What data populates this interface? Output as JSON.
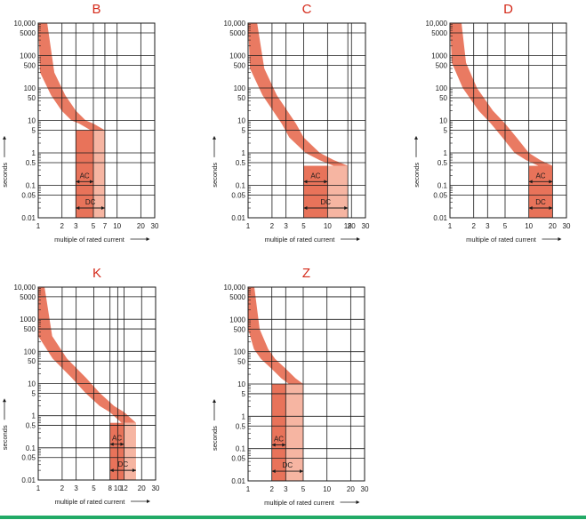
{
  "colors": {
    "title": "#d42a1a",
    "band_dark": "#e8735a",
    "band_light": "#f6b5a2",
    "grid": "#1a1a1a",
    "text": "#1a1a1a",
    "bottom_rule": "#22aa66"
  },
  "common": {
    "ylabel": "seconds",
    "xlabel": "multiple of rated current",
    "y_ticks": [
      "10,000",
      "5000",
      "1000",
      "500",
      "100",
      "50",
      "10",
      "5",
      "1",
      "0.5",
      "0.1",
      "0.05",
      "0.01"
    ]
  },
  "chart_data": [
    {
      "type": "area",
      "title": "B",
      "x_scale": "log",
      "y_scale": "log",
      "xlim": [
        1,
        30
      ],
      "ylim": [
        0.01,
        10000
      ],
      "x_ticks": [
        "1",
        "2",
        "3",
        "5",
        "7",
        "10",
        "20",
        "30"
      ],
      "x_tick_values": [
        1,
        2,
        3,
        5,
        7,
        10,
        20,
        30
      ],
      "ac": {
        "label": "AC",
        "from": 3,
        "to": 5
      },
      "dc": {
        "label": "DC",
        "from": 3,
        "to": 7
      },
      "band_curve": [
        [
          1.3,
          10000
        ],
        [
          1.6,
          300
        ],
        [
          2.2,
          60
        ],
        [
          3,
          20
        ],
        [
          4,
          10
        ],
        [
          5,
          8
        ],
        [
          7,
          5
        ]
      ]
    },
    {
      "type": "area",
      "title": "C",
      "x_scale": "log",
      "y_scale": "log",
      "xlim": [
        1,
        30
      ],
      "ylim": [
        0.01,
        10000
      ],
      "x_ticks": [
        "1",
        "2",
        "3",
        "5",
        "10",
        "18",
        "20",
        "30"
      ],
      "x_tick_values": [
        1,
        2,
        3,
        5,
        10,
        18,
        20,
        30
      ],
      "ac": {
        "label": "AC",
        "from": 5,
        "to": 10
      },
      "dc": {
        "label": "DC",
        "from": 5,
        "to": 18
      },
      "band_curve": [
        [
          1.3,
          10000
        ],
        [
          1.6,
          400
        ],
        [
          2.3,
          60
        ],
        [
          4,
          8
        ],
        [
          5,
          3
        ],
        [
          8,
          1
        ],
        [
          12,
          0.6
        ],
        [
          18,
          0.4
        ]
      ]
    },
    {
      "type": "area",
      "title": "D",
      "x_scale": "log",
      "y_scale": "log",
      "xlim": [
        1,
        30
      ],
      "ylim": [
        0.01,
        10000
      ],
      "x_ticks": [
        "1",
        "2",
        "3",
        "5",
        "10",
        "20",
        "30"
      ],
      "x_tick_values": [
        1,
        2,
        3,
        5,
        10,
        20,
        30
      ],
      "ac": {
        "label": "AC",
        "from": 10,
        "to": 20
      },
      "dc": {
        "label": "DC",
        "from": 10,
        "to": 20
      },
      "band_curve": [
        [
          1.4,
          10000
        ],
        [
          1.6,
          600
        ],
        [
          2.2,
          100
        ],
        [
          3.5,
          20
        ],
        [
          5,
          8
        ],
        [
          7,
          3
        ],
        [
          10,
          1
        ],
        [
          14,
          0.6
        ],
        [
          20,
          0.4
        ]
      ]
    },
    {
      "type": "area",
      "title": "K",
      "x_scale": "log",
      "y_scale": "log",
      "xlim": [
        1,
        30
      ],
      "ylim": [
        0.01,
        10000
      ],
      "x_ticks": [
        "1",
        "2",
        "3",
        "5",
        "8",
        "10",
        "12",
        "20",
        "30"
      ],
      "x_tick_values": [
        1,
        2,
        3,
        5,
        8,
        10,
        12,
        20,
        30
      ],
      "ac": {
        "label": "AC",
        "from": 8,
        "to": 12
      },
      "dc": {
        "label": "DC",
        "from": 8,
        "to": 17
      },
      "band_curve": [
        [
          1.2,
          10000
        ],
        [
          1.5,
          300
        ],
        [
          2.3,
          60
        ],
        [
          4,
          15
        ],
        [
          6,
          5
        ],
        [
          9,
          2
        ],
        [
          12,
          1.3
        ],
        [
          17,
          0.6
        ]
      ]
    },
    {
      "type": "area",
      "title": "Z",
      "x_scale": "log",
      "y_scale": "log",
      "xlim": [
        1,
        30
      ],
      "ylim": [
        0.01,
        10000
      ],
      "x_ticks": [
        "1",
        "2",
        "3",
        "5",
        "10",
        "20",
        "30"
      ],
      "x_tick_values": [
        1,
        2,
        3,
        5,
        10,
        20,
        30
      ],
      "ac": {
        "label": "AC",
        "from": 2,
        "to": 3
      },
      "dc": {
        "label": "DC",
        "from": 2,
        "to": 5
      },
      "band_curve": [
        [
          1.2,
          10000
        ],
        [
          1.4,
          500
        ],
        [
          1.8,
          120
        ],
        [
          2.2,
          60
        ],
        [
          3,
          30
        ],
        [
          4,
          15
        ],
        [
          5,
          10
        ]
      ]
    }
  ]
}
